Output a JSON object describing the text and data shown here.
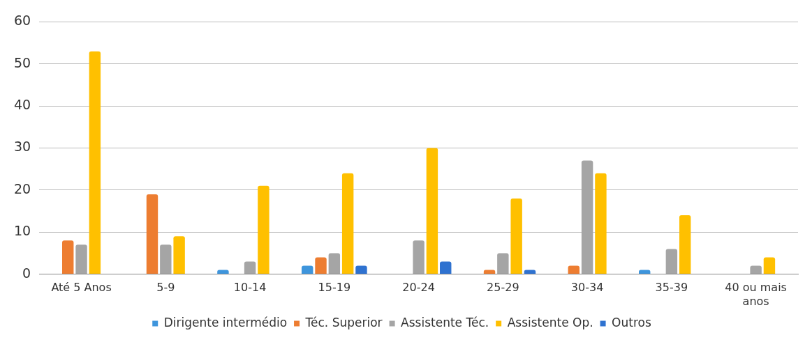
{
  "chart_data": {
    "type": "bar",
    "categories": [
      "Até 5 Anos",
      "5-9",
      "10-14",
      "15-19",
      "20-24",
      "25-29",
      "30-34",
      "35-39",
      [
        "40 ou mais",
        "anos"
      ]
    ],
    "series": [
      {
        "name": "Dirigente intermédio",
        "color": "#3e95dc",
        "values": [
          0,
          0,
          1,
          2,
          0,
          0,
          0,
          1,
          0
        ]
      },
      {
        "name": "Téc. Superior",
        "color": "#ed7d31",
        "values": [
          8,
          19,
          0,
          4,
          0,
          1,
          2,
          0,
          0
        ]
      },
      {
        "name": "Assistente Téc.",
        "color": "#a5a5a5",
        "values": [
          7,
          7,
          3,
          5,
          8,
          5,
          27,
          6,
          2
        ]
      },
      {
        "name": "Assistente Op.",
        "color": "#ffc000",
        "values": [
          53,
          9,
          21,
          24,
          30,
          18,
          24,
          14,
          4
        ]
      },
      {
        "name": "Outros",
        "color": "#2f72d0",
        "values": [
          0,
          0,
          0,
          2,
          3,
          1,
          0,
          0,
          0
        ]
      }
    ],
    "ylim": [
      0,
      60
    ],
    "yticks": [
      0,
      10,
      20,
      30,
      40,
      50,
      60
    ],
    "grid": "y",
    "legend": "bottom"
  }
}
